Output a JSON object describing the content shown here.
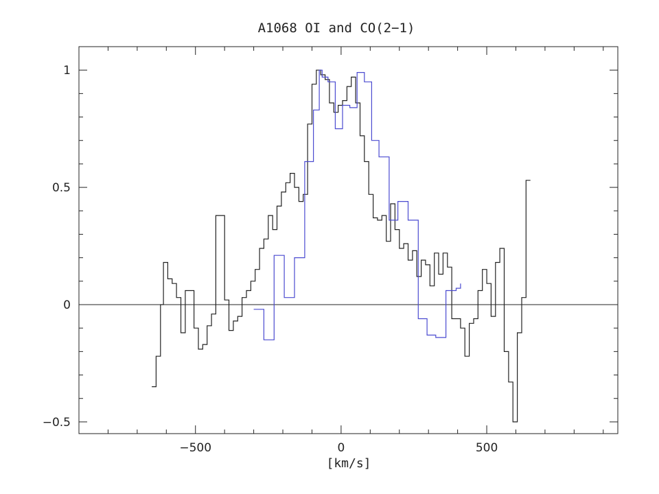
{
  "chart_data": {
    "type": "line",
    "title": "A1068 OI and CO(2−1)",
    "xlabel": "[km/s]",
    "ylabel": "",
    "xlim": [
      -900,
      950
    ],
    "ylim": [
      -0.55,
      1.1
    ],
    "x_ticks": [
      {
        "value": -500,
        "label": "−500"
      },
      {
        "value": 0,
        "label": "0"
      },
      {
        "value": 500,
        "label": "500"
      }
    ],
    "y_ticks": [
      {
        "value": -0.5,
        "label": "−0.5"
      },
      {
        "value": 0,
        "label": "0"
      },
      {
        "value": 0.5,
        "label": "0.5"
      },
      {
        "value": 1,
        "label": "1"
      }
    ],
    "zero_line": true,
    "grid": false,
    "colors": {
      "oi": "#222222",
      "co": "#4a4ad0",
      "axis": "#222222"
    },
    "series": [
      {
        "color": "#222222",
        "step": true,
        "x": [
          -650,
          -635,
          -620,
          -610,
          -595,
          -580,
          -565,
          -550,
          -535,
          -520,
          -505,
          -490,
          -475,
          -460,
          -445,
          -430,
          -415,
          -400,
          -385,
          -370,
          -355,
          -340,
          -325,
          -310,
          -295,
          -280,
          -265,
          -250,
          -235,
          -220,
          -205,
          -190,
          -175,
          -160,
          -145,
          -130,
          -115,
          -100,
          -85,
          -70,
          -55,
          -40,
          -25,
          -10,
          5,
          20,
          35,
          50,
          65,
          80,
          95,
          110,
          125,
          140,
          155,
          170,
          185,
          200,
          215,
          230,
          245,
          260,
          275,
          290,
          305,
          320,
          335,
          350,
          365,
          380,
          395,
          410,
          425,
          440,
          455,
          470,
          485,
          500,
          515,
          530,
          545,
          560,
          575,
          590,
          605,
          620,
          635,
          650
        ],
        "y": [
          -0.35,
          -0.22,
          0.0,
          0.18,
          0.11,
          0.09,
          0.03,
          -0.12,
          0.06,
          0.06,
          -0.1,
          -0.19,
          -0.17,
          -0.09,
          -0.04,
          0.38,
          0.38,
          0.02,
          -0.11,
          -0.07,
          -0.05,
          0.03,
          0.06,
          0.1,
          0.15,
          0.24,
          0.28,
          0.38,
          0.32,
          0.42,
          0.48,
          0.52,
          0.56,
          0.5,
          0.44,
          0.47,
          0.77,
          0.94,
          1.0,
          0.98,
          0.96,
          0.86,
          0.82,
          0.85,
          0.87,
          0.93,
          0.97,
          0.86,
          0.72,
          0.61,
          0.47,
          0.37,
          0.36,
          0.38,
          0.27,
          0.43,
          0.32,
          0.24,
          0.26,
          0.19,
          0.23,
          0.12,
          0.19,
          0.17,
          0.08,
          0.22,
          0.13,
          0.22,
          0.16,
          -0.06,
          -0.06,
          -0.1,
          -0.22,
          -0.08,
          -0.06,
          0.06,
          0.15,
          0.09,
          -0.05,
          0.18,
          0.24,
          -0.2,
          -0.33,
          -0.5,
          -0.12,
          0.03,
          0.53,
          0.53
        ]
      },
      {
        "color": "#4a4ad0",
        "step": true,
        "x": [
          -300,
          -265,
          -230,
          -195,
          -160,
          -125,
          -95,
          -75,
          -65,
          -45,
          -20,
          5,
          30,
          55,
          80,
          105,
          130,
          165,
          195,
          230,
          265,
          295,
          325,
          360,
          395,
          410
        ],
        "y": [
          -0.02,
          -0.15,
          0.21,
          0.03,
          0.2,
          0.61,
          0.83,
          1.0,
          0.97,
          0.95,
          0.75,
          0.85,
          0.84,
          0.99,
          0.95,
          0.7,
          0.63,
          0.36,
          0.44,
          0.36,
          -0.06,
          -0.13,
          -0.14,
          0.06,
          0.07,
          0.09
        ]
      }
    ]
  }
}
